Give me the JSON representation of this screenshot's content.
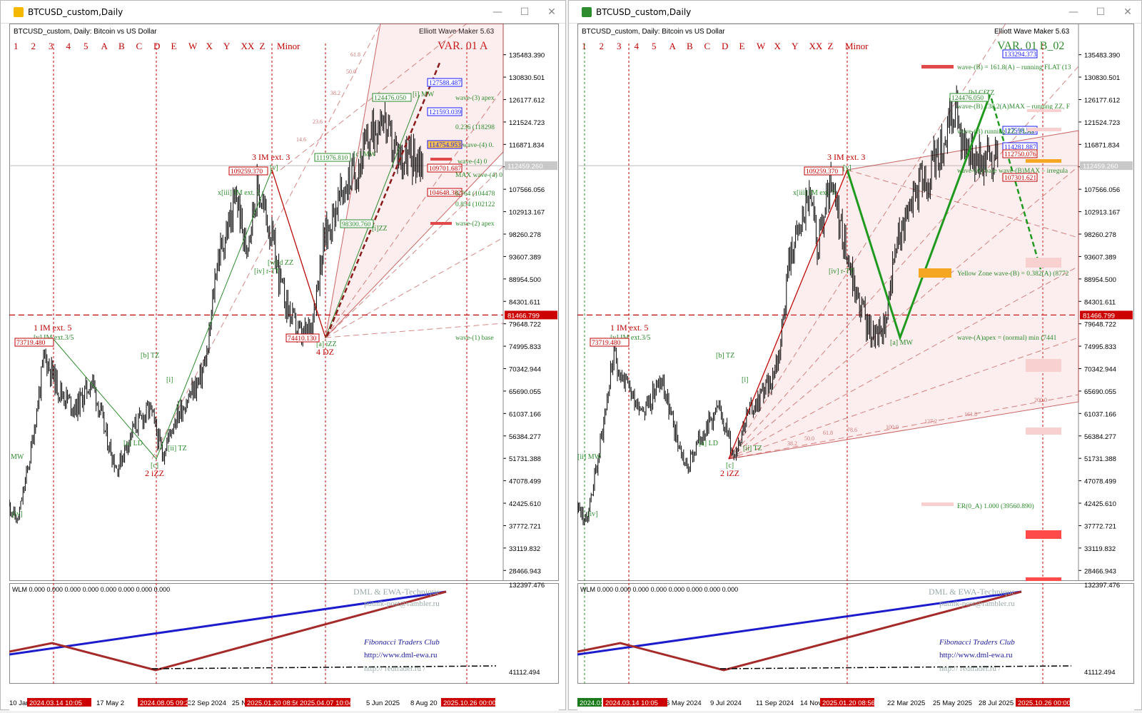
{
  "colors": {
    "price": "#000000",
    "red": "#c00000",
    "green": "#2e8b2e",
    "blue": "#1a1aff",
    "pink": "#f5d0d0",
    "ticker_bg": "#cc0000",
    "orange": "#f5a623",
    "brown": "#a52a2a",
    "navy": "#0000aa"
  },
  "left": {
    "window_title": "BTCUSD_custom,Daily",
    "chart_title": "BTCUSD_custom, Daily:  Bitcoin vs US Dollar",
    "indicator": "Elliott Wave Maker 5.63",
    "var_label": "VAR. 01 A",
    "degree_buttons": [
      "1",
      "2",
      "3",
      "4",
      "5",
      "A",
      "B",
      "C",
      "D",
      "E",
      "W",
      "X",
      "Y",
      "XX",
      "Z",
      "Minor"
    ],
    "price_axis": [
      "135483.390",
      "130830.501",
      "126177.612",
      "121524.723",
      "116871.834",
      "112218.945",
      "107566.056",
      "102913.167",
      "98260.278",
      "93607.389",
      "88954.500",
      "84301.611",
      "79648.722",
      "74995.833",
      "70342.944",
      "65690.055",
      "61037.166",
      "56384.277",
      "51731.388",
      "47078.499",
      "42425.610",
      "37772.721",
      "33119.832",
      "28466.943"
    ],
    "current_price": "112459.260",
    "hline_price": "81466.799",
    "sub_axis_top": "132397.476",
    "sub_axis_bottom": "41112.494",
    "time_axis": [
      "10 Jan",
      "17 May 2",
      "22 Sep 2024",
      "25 N",
      "5 Jun 2025",
      "8 Aug 20"
    ],
    "time_tags": [
      "2024.03.14 10:05",
      "2024",
      "2024.08.05 09:24",
      "2025.01.20 08:56",
      "2025.04.07 10:04",
      "2025.10.26 00:00"
    ],
    "price_tags": [
      "127588.487",
      "121593.039",
      "114754.953",
      "109701.687",
      "104648.382"
    ],
    "wave_labels": {
      "w1": "1 IM ext. 5",
      "w1sub": "[v] IM ext.3/5",
      "p73": "73719.480",
      "w2": "2 iZZ",
      "c2": "[c]",
      "b": "[b] TZ",
      "a": "[a] LD",
      "ii": "[ii] TZ",
      "i": "[i]",
      "iv": "[iv]",
      "mw": "MW",
      "w3": "3 IM ext. 3",
      "p109": "109259.370",
      "xiii": "x[iii] IM ext. 5",
      "v": "[v]",
      "ivr": "[iv] r-TT",
      "wiv": "[w] d ZZ",
      "w4": "4 DZ",
      "a4": "[a] iZZ",
      "p74": "74410.130",
      "p98": "98300.760",
      "wiii": "[i]ZZ",
      "p111": "111976.810",
      "mw2": "[c] MW",
      "p124": "124476.050",
      "imw": "[i] MW",
      "fibs": [
        "0.236 (118298",
        "0.764 (104478",
        "0.854 (102122"
      ],
      "waves": [
        "wave-(3) apex",
        "wave-(4) 0.",
        "wave-(4) 0",
        "MAX wave-(4) 0",
        "wave-(2) apex",
        "wave-(1) base"
      ],
      "fans": [
        "61.8",
        "50.0",
        "38.2",
        "23.6",
        "14.6"
      ]
    },
    "sub": {
      "header": "WLM 0.000 0.000 0.000 0.000 0.000 0.000 0.000 0.000",
      "brand": "DML & EWA-Technique",
      "email": "putnik-post@rambler.ru",
      "club": "Fibonacci     Traders     Club",
      "url1": "http://www.dml-ewa.ru",
      "url2": "http://  redtrader.ru  /"
    }
  },
  "right": {
    "window_title": "BTCUSD_custom,Daily",
    "chart_title": "BTCUSD_custom, Daily:  Bitcoin vs US Dollar",
    "indicator": "Elliott Wave Maker 5.63",
    "var_label": "VAR. 01 B_02",
    "degree_buttons": [
      "1",
      "2",
      "3",
      "4",
      "5",
      "A",
      "B",
      "C",
      "D",
      "E",
      "W",
      "X",
      "Y",
      "XX",
      "Z",
      "Minor"
    ],
    "price_axis": [
      "135483.390",
      "130830.501",
      "126177.612",
      "121524.723",
      "116871.834",
      "112218.945",
      "107566.056",
      "102913.167",
      "98260.278",
      "93607.389",
      "88954.500",
      "84301.611",
      "79648.722",
      "74995.833",
      "70342.944",
      "65690.055",
      "61037.166",
      "56384.277",
      "51731.388",
      "47078.499",
      "42425.610",
      "37772.721",
      "33119.832",
      "28466.943"
    ],
    "current_price": "112459.260",
    "hline_price": "81466.799",
    "sub_axis_top": "132397.476",
    "sub_axis_bottom": "41112.494",
    "time_axis": [
      "6 May 2024",
      "9 Jul 2024",
      "11 Sep 2024",
      "14 Nov",
      "22 Mar 2025",
      "25 May 2025",
      "28 Jul 2025"
    ],
    "time_tags": [
      "2024.01",
      "2024.03.14 10:05",
      "2025.01.20 08:56",
      "2025.10.26 00:00"
    ],
    "price_tags": [
      "133294.373",
      "117598.538",
      "114281.887",
      "112750.076",
      "107301.621"
    ],
    "wave_labels": {
      "w1": "1 IM ext. 5",
      "w1sub": "[v] IM ext.3/5",
      "p73": "73719.480",
      "w2": "2 iZZ",
      "c2": "[c]",
      "b": "[b] TZ",
      "a": "[a] LD",
      "ii": "[ii] TZ",
      "i": "[i]",
      "iv": "[iv]",
      "mw": "[ii] MW",
      "w3": "3 IM ext. 3",
      "p109": "109259.370",
      "xiii": "x[iii] IM ext. 5",
      "v": "[v]",
      "ivr": "[iv] r-TT",
      "amw": "[a] MW",
      "bczz": "[b] CfZZ",
      "p124": "124476.050",
      "waves": [
        "wave-(B) = 161.8(A) – running FLAT (13",
        "wave-(B) 138.2(A)MAX – running ZZ, F",
        "wave-(B)  running ZZ, FLAT",
        "wave-(A) base  wave-(B)MAX – irregula",
        "Yellow Zone wave-(B) = 0.382(A) (8772",
        "wave-(A)apex = (normal) min (7441",
        "ER(0_A) 1.000 (39560.890)"
      ],
      "fans": [
        "38.2",
        "50.0",
        "61.8",
        "78.6",
        "100.0",
        "127.2",
        "161.8",
        "200.0"
      ]
    },
    "sub": {
      "header": "WLM 0.000 0.000 0.000 0.000 0.000 0.000 0.000 0.000",
      "brand": "DML & EWA-Technique",
      "email": "putnik-post@rambler.ru",
      "club": "Fibonacci     Traders     Club",
      "url1": "http://www.dml-ewa.ru",
      "url2": "http://  redtrader.ru  /"
    }
  }
}
